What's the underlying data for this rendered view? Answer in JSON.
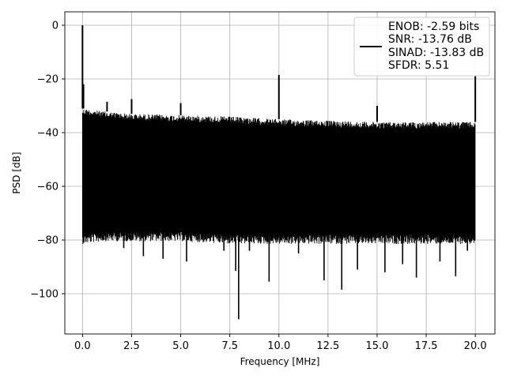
{
  "chart_data": {
    "type": "line",
    "xlabel": "Frequency [MHz]",
    "ylabel": "PSD [dB]",
    "xlim": [
      -0.9,
      21.0
    ],
    "ylim": [
      -115,
      5
    ],
    "x_ticks": [
      0.0,
      2.5,
      5.0,
      7.5,
      10.0,
      12.5,
      15.0,
      17.5,
      20.0
    ],
    "x_tick_labels": [
      "0.0",
      "2.5",
      "5.0",
      "7.5",
      "10.0",
      "12.5",
      "15.0",
      "17.5",
      "20.0"
    ],
    "y_ticks": [
      0,
      -20,
      -40,
      -60,
      -80,
      -100
    ],
    "y_tick_labels": [
      "0",
      "−20",
      "−40",
      "−60",
      "−80",
      "−100"
    ],
    "grid": true,
    "legend_position": "top-right",
    "legend_lines": [
      "ENOB: -2.59 bits",
      "SNR: -13.76 dB",
      "SINAD: -13.83 dB",
      "SFDR: 5.51"
    ],
    "line_color": "#000000",
    "band": {
      "x": [
        0.0,
        1.0,
        2.5,
        5.0,
        7.5,
        10.0,
        12.5,
        15.0,
        17.5,
        20.0
      ],
      "upper": [
        -31,
        -32,
        -33,
        -33.5,
        -34,
        -35,
        -35.5,
        -36,
        -36,
        -36
      ],
      "lower": [
        -78,
        -77,
        -77,
        -77,
        -78,
        -78,
        -78,
        -78,
        -78,
        -78
      ]
    },
    "spikes": [
      {
        "x": 0.0,
        "y": 0
      },
      {
        "x": 0.05,
        "y": -22
      },
      {
        "x": 1.25,
        "y": -28.5
      },
      {
        "x": 2.5,
        "y": -27.5
      },
      {
        "x": 5.0,
        "y": -29
      },
      {
        "x": 10.0,
        "y": -18.5
      },
      {
        "x": 15.0,
        "y": -30
      },
      {
        "x": 20.0,
        "y": -19
      }
    ],
    "dips": [
      {
        "x": 2.1,
        "y": -83
      },
      {
        "x": 3.1,
        "y": -86
      },
      {
        "x": 4.1,
        "y": -87
      },
      {
        "x": 5.3,
        "y": -88
      },
      {
        "x": 7.2,
        "y": -84
      },
      {
        "x": 7.8,
        "y": -91.5
      },
      {
        "x": 7.95,
        "y": -109.5
      },
      {
        "x": 8.5,
        "y": -84
      },
      {
        "x": 9.5,
        "y": -95.5
      },
      {
        "x": 11.0,
        "y": -85
      },
      {
        "x": 12.3,
        "y": -95
      },
      {
        "x": 13.2,
        "y": -98.5
      },
      {
        "x": 14.0,
        "y": -91
      },
      {
        "x": 15.4,
        "y": -92
      },
      {
        "x": 16.3,
        "y": -89
      },
      {
        "x": 17.0,
        "y": -94
      },
      {
        "x": 18.2,
        "y": -88
      },
      {
        "x": 19.0,
        "y": -93.5
      },
      {
        "x": 19.6,
        "y": -84
      }
    ]
  }
}
